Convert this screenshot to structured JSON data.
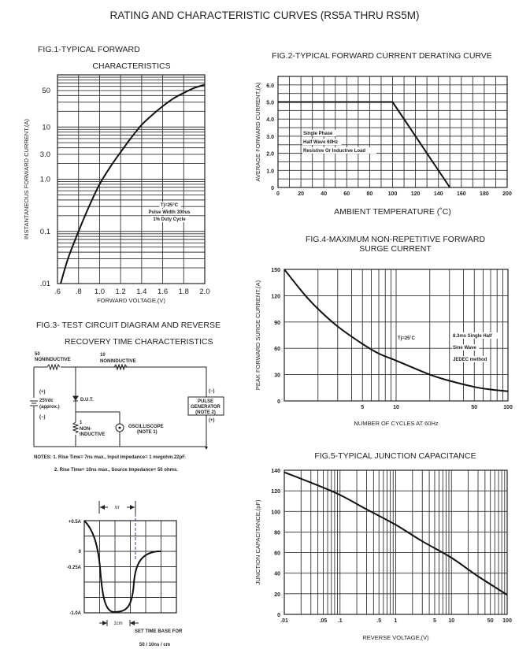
{
  "page_title": "RATING AND CHARACTERISTIC CURVES (RS5A THRU RS5M)",
  "colors": {
    "ink": "#222222",
    "trr_marker": "#2a3fa0"
  },
  "chart_data": [
    {
      "id": "fig1",
      "type": "line",
      "title_lines": [
        "FIG.1-TYPICAL FORWARD",
        "CHARACTERISTICS"
      ],
      "xlabel": "FORWARD VOLTAGE,(V)",
      "ylabel": "INSTANTANEOUS FORWARD CURRENT,(A)",
      "xscale": "linear",
      "yscale": "log",
      "xlim": [
        0.6,
        2.0
      ],
      "ylim": [
        0.01,
        100
      ],
      "x_ticks": [
        {
          "v": 0.6,
          "label": ".6"
        },
        {
          "v": 0.8,
          "label": ".8"
        },
        {
          "v": 1.0,
          "label": "1.0"
        },
        {
          "v": 1.2,
          "label": "1.2"
        },
        {
          "v": 1.4,
          "label": "1.4"
        },
        {
          "v": 1.6,
          "label": "1.6"
        },
        {
          "v": 1.8,
          "label": "1.8"
        },
        {
          "v": 2.0,
          "label": "2.0"
        }
      ],
      "y_ticks": [
        {
          "v": 0.01,
          "label": ".01"
        },
        {
          "v": 0.1,
          "label": "0.1"
        },
        {
          "v": 1,
          "label": "1.0"
        },
        {
          "v": 3,
          "label": "3.0"
        },
        {
          "v": 10,
          "label": "10"
        },
        {
          "v": 50,
          "label": "50"
        }
      ],
      "grid": true,
      "annotation": [
        "Tj=25°C",
        "Pulse Width 300us",
        "1% Duty Cycle"
      ],
      "series": [
        {
          "x": [
            0.63,
            0.7,
            0.8,
            0.9,
            1.0,
            1.1,
            1.2,
            1.3,
            1.4,
            1.5,
            1.6,
            1.7,
            1.8,
            1.9,
            2.0
          ],
          "y": [
            0.01,
            0.03,
            0.1,
            0.3,
            0.8,
            1.7,
            3.3,
            6.2,
            11,
            17,
            25,
            35,
            45,
            56,
            65
          ]
        }
      ]
    },
    {
      "id": "fig2",
      "type": "line",
      "title": "FIG.2-TYPICAL FORWARD CURRENT DERATING CURVE",
      "xlabel": "AMBIENT TEMPERATURE (˚C)",
      "ylabel": "AVERAGE FORWARD CURRENT,(A)",
      "xscale": "linear",
      "yscale": "linear",
      "xlim": [
        0,
        200
      ],
      "ylim": [
        0,
        6.5
      ],
      "x_ticks": [
        {
          "v": 0,
          "label": "0"
        },
        {
          "v": 20,
          "label": "20"
        },
        {
          "v": 40,
          "label": "40"
        },
        {
          "v": 60,
          "label": "60"
        },
        {
          "v": 80,
          "label": "80"
        },
        {
          "v": 100,
          "label": "100"
        },
        {
          "v": 120,
          "label": "120"
        },
        {
          "v": 140,
          "label": "140"
        },
        {
          "v": 160,
          "label": "160"
        },
        {
          "v": 180,
          "label": "180"
        },
        {
          "v": 200,
          "label": "200"
        }
      ],
      "y_ticks": [
        {
          "v": 0,
          "label": "0"
        },
        {
          "v": 1,
          "label": "1.0"
        },
        {
          "v": 2,
          "label": "2.0"
        },
        {
          "v": 3,
          "label": "3.0"
        },
        {
          "v": 4,
          "label": "4.0"
        },
        {
          "v": 5,
          "label": "5.0"
        },
        {
          "v": 6,
          "label": "6.0"
        }
      ],
      "grid": true,
      "annotation": [
        "Single Phase",
        "Half Wave 60Hz",
        "Resistive Or Inductive Load"
      ],
      "series": [
        {
          "x": [
            0,
            100,
            150
          ],
          "y": [
            5,
            5,
            0
          ]
        }
      ]
    },
    {
      "id": "fig4",
      "type": "line",
      "title_lines": [
        "FIG.4-MAXIMUM NON-REPETITIVE FORWARD",
        "SURGE CURRENT"
      ],
      "xlabel": "NUMBER OF CYCLES AT 60Hz",
      "ylabel": "PEAK FORWARD SURGE CURRENT,(A)",
      "xscale": "log",
      "yscale": "linear",
      "xlim": [
        1,
        100
      ],
      "ylim": [
        0,
        150
      ],
      "x_ticks": [
        {
          "v": 5,
          "label": "5"
        },
        {
          "v": 10,
          "label": "10"
        },
        {
          "v": 50,
          "label": "50"
        },
        {
          "v": 100,
          "label": "100"
        }
      ],
      "y_ticks": [
        {
          "v": 0,
          "label": "0"
        },
        {
          "v": 30,
          "label": "30"
        },
        {
          "v": 60,
          "label": "60"
        },
        {
          "v": 90,
          "label": "90"
        },
        {
          "v": 120,
          "label": "120"
        },
        {
          "v": 150,
          "label": "150"
        }
      ],
      "grid": true,
      "annotation_tj": "Tj=25˚C",
      "annotation": [
        "8.3ms Single Half",
        "Sine Wave",
        "JEDEC method"
      ],
      "series": [
        {
          "x": [
            1,
            1.5,
            2,
            3,
            5,
            7,
            10,
            20,
            30,
            50,
            70,
            100
          ],
          "y": [
            150,
            122,
            105,
            85,
            65,
            54,
            46,
            30,
            23,
            16,
            13,
            11
          ]
        }
      ]
    },
    {
      "id": "fig5",
      "type": "line",
      "title": "FIG.5-TYPICAL JUNCTION CAPACITANCE",
      "xlabel": "REVERSE VOLTAGE,(V)",
      "ylabel": "JUNCTION CAPACITANCE,(pF)",
      "xscale": "log",
      "yscale": "linear",
      "xlim": [
        0.01,
        100
      ],
      "ylim": [
        0,
        140
      ],
      "x_ticks": [
        {
          "v": 0.01,
          "label": ".01"
        },
        {
          "v": 0.05,
          "label": ".05"
        },
        {
          "v": 0.1,
          "label": ".1"
        },
        {
          "v": 0.5,
          "label": ".5"
        },
        {
          "v": 1,
          "label": "1"
        },
        {
          "v": 5,
          "label": "5"
        },
        {
          "v": 10,
          "label": "10"
        },
        {
          "v": 50,
          "label": "50"
        },
        {
          "v": 100,
          "label": "100"
        }
      ],
      "y_ticks": [
        {
          "v": 0,
          "label": "0"
        },
        {
          "v": 20,
          "label": "20"
        },
        {
          "v": 40,
          "label": "40"
        },
        {
          "v": 60,
          "label": "60"
        },
        {
          "v": 80,
          "label": "80"
        },
        {
          "v": 100,
          "label": "100"
        },
        {
          "v": 120,
          "label": "120"
        },
        {
          "v": 140,
          "label": "140"
        }
      ],
      "grid": true,
      "series": [
        {
          "x": [
            0.01,
            0.03,
            0.1,
            0.3,
            1,
            3,
            10,
            30,
            100
          ],
          "y": [
            138,
            128,
            116,
            102,
            87,
            71,
            55,
            37,
            19
          ]
        }
      ]
    }
  ],
  "fig3": {
    "title_lines": [
      "FIG.3- TEST CIRCUIT DIAGRAM AND REVERSE",
      "RECOVERY TIME CHARACTERISTICS"
    ],
    "r1": {
      "value": "50",
      "type": "NONINDUCTIVE"
    },
    "r2": {
      "value": "10",
      "type": "NONINDUCTIVE"
    },
    "r3": {
      "value": "1",
      "type_line1": "NON-",
      "type_line2": "INDUCTIVE"
    },
    "battery": {
      "plus": "(+)",
      "voltage": "25Vdc",
      "approx": "(approx.)",
      "minus": "(−)"
    },
    "dut": "D.U.T.",
    "oscilloscope": {
      "name": "OSCILLISCOPE",
      "note": "(NOTE 1)"
    },
    "pulse_gen": {
      "line1": "PULSE",
      "line2": "GENERATOR",
      "line3": "(NOTE 2)",
      "minus": "(−)",
      "plus": "(+)"
    },
    "notes": [
      "NOTES: 1. Rise Time= 7ns max., Input Impedance= 1 megohm.22pF.",
      "2. Rise Time= 10ns max., Source Impedance= 50 ohms."
    ],
    "waveform": {
      "trr_label": "trr",
      "y_labels": [
        "+0.5A",
        "0",
        "-0.25A",
        "-1.0A"
      ],
      "scale_label": "1cm",
      "timebase_lines": [
        "SET TIME BASE FOR",
        "50 / 10ns / cm"
      ]
    }
  }
}
